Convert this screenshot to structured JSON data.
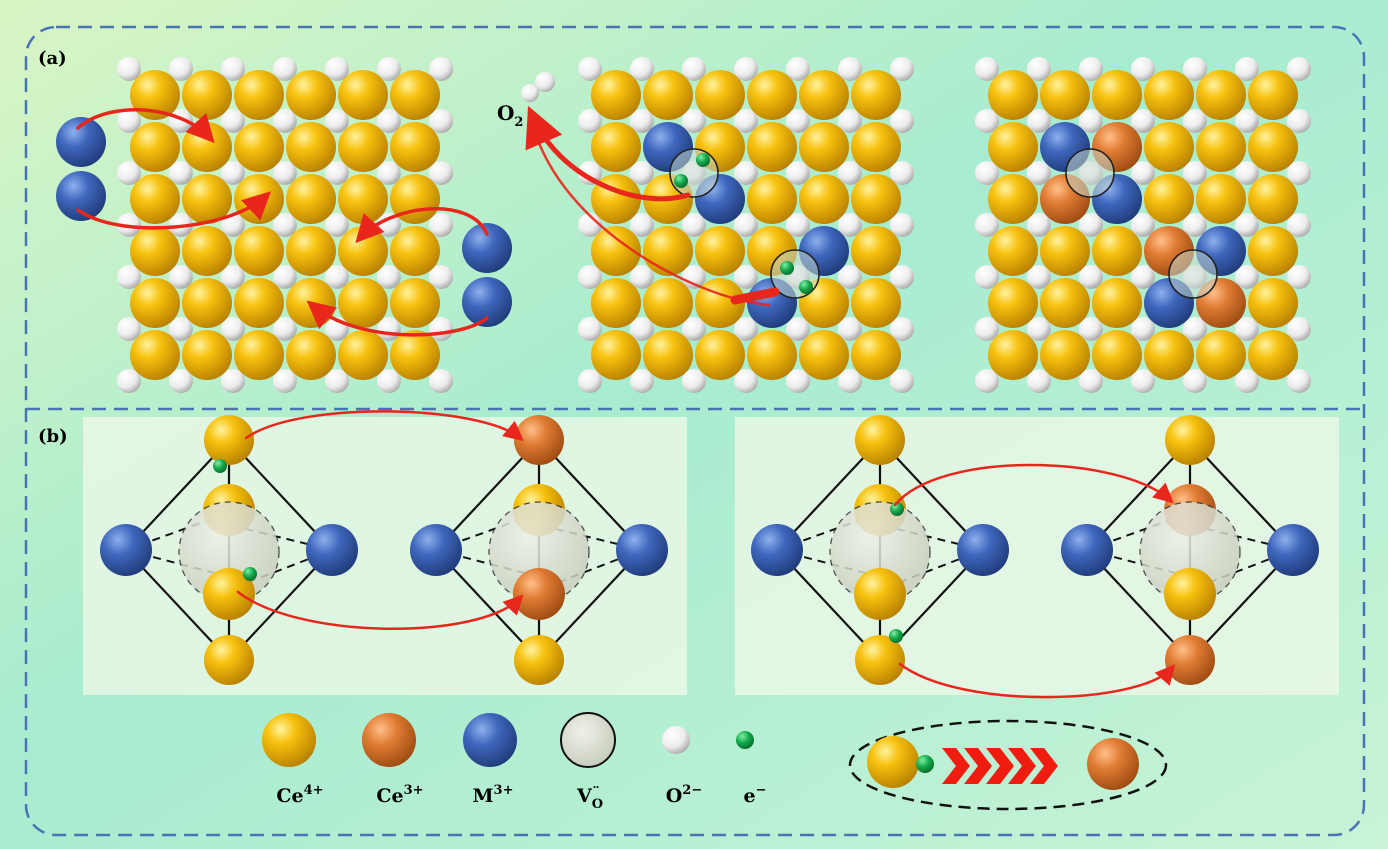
{
  "panels": {
    "a_label": "(a)",
    "b_label": "(b)",
    "o2_label": "O",
    "o2_subscript": "2"
  },
  "legend": {
    "ce4": {
      "base": "Ce",
      "sup": "4+"
    },
    "ce3": {
      "base": "Ce",
      "sup": "3+"
    },
    "m3": {
      "base": "M",
      "sup": "3+"
    },
    "vo": {
      "base": "V",
      "sub": "O",
      "dots": "¨"
    },
    "o2m": {
      "base": "O",
      "sup": "2−"
    },
    "electron": {
      "base": "e",
      "sup": "−"
    }
  },
  "colors": {
    "ce4": "#f2b705",
    "ce3": "#e07b32",
    "m3": "#3a62b8",
    "oxygen": "#f4f4f4",
    "electron": "#13a84a",
    "vacancy": "#cfd5c6",
    "arrow": "#e8261c",
    "dash_border": "#4a73b5"
  }
}
